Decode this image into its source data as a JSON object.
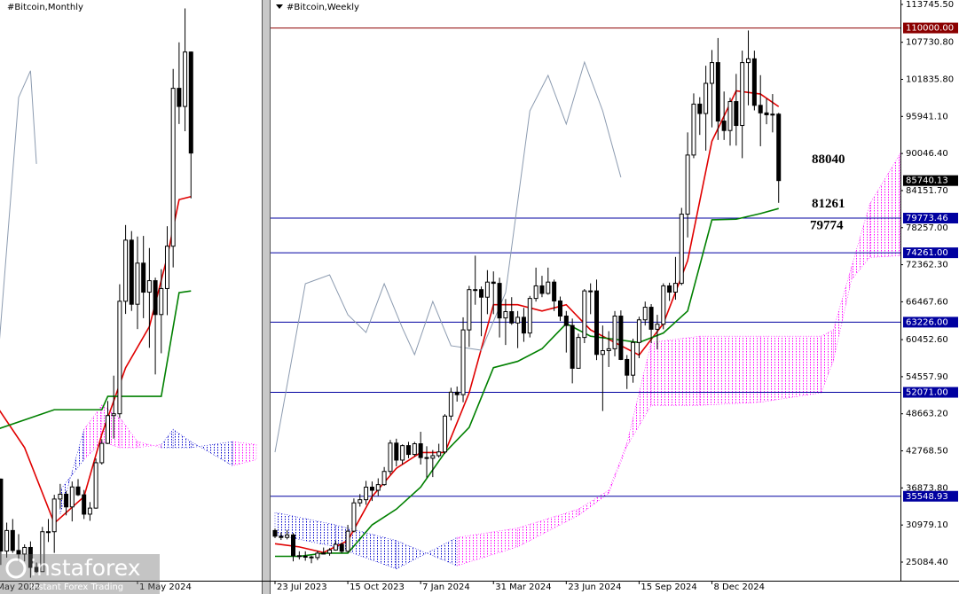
{
  "watermark": {
    "brand": "instaforex",
    "tagline": "Instant Forex Trading"
  },
  "chart_data": [
    {
      "type": "candlestick",
      "title": "#Bitcoin,Monthly",
      "xlim": [
        0.866,
        44.9
      ],
      "ylim": [
        15000,
        111000
      ],
      "xticks": [
        {
          "value": 0,
          "label": "May 2022"
        },
        {
          "value": 24,
          "label": "1 May 2024"
        }
      ],
      "up_color": "#ffffff",
      "down_color": "#000000",
      "open": [
        37700,
        31800,
        19900,
        23300,
        20000,
        19400,
        20500,
        17200,
        16500,
        23100,
        23100,
        28500,
        29300,
        27200,
        30500,
        29200,
        26000,
        27000,
        34500,
        37700,
        42300,
        42600,
        61200,
        71300,
        60700,
        67500,
        62700,
        64600,
        59000,
        63300,
        70300,
        96400,
        93400,
        102400
      ],
      "high": [
        39900,
        31900,
        24600,
        25200,
        22700,
        21000,
        21500,
        18000,
        23900,
        25200,
        29200,
        31000,
        29800,
        31400,
        31800,
        30000,
        28000,
        35200,
        38400,
        44700,
        48900,
        64000,
        73800,
        72800,
        71900,
        72000,
        70000,
        65100,
        66500,
        73600,
        99600,
        104000,
        109600,
        102500
      ],
      "low": [
        26700,
        17600,
        18800,
        19600,
        18200,
        18200,
        15500,
        16300,
        16500,
        21400,
        19600,
        26900,
        25800,
        24800,
        29000,
        25200,
        24900,
        26900,
        34200,
        37600,
        38500,
        41900,
        59100,
        59600,
        56600,
        58400,
        53500,
        49100,
        52600,
        58900,
        66800,
        90500,
        89300,
        78200
      ],
      "close": [
        31800,
        19900,
        23300,
        20000,
        19400,
        20500,
        17200,
        16500,
        23100,
        23100,
        28500,
        29300,
        27200,
        30500,
        29200,
        26000,
        27000,
        34500,
        37700,
        42300,
        42600,
        61200,
        71300,
        60700,
        67500,
        62700,
        64600,
        59000,
        63300,
        70300,
        96400,
        93400,
        102400,
        85700
      ],
      "cloud": {
        "up_color": "#ff00ff",
        "down_color": "#0000cd",
        "x": [
          11,
          15,
          18,
          21,
          24,
          28,
          30,
          33,
          40,
          44
        ],
        "span_a": [
          26000,
          40000,
          44000,
          42000,
          38000,
          37000,
          37000,
          37000,
          38000,
          37500
        ],
        "span_b": [
          30000,
          35000,
          38000,
          37000,
          37000,
          37500,
          40000,
          38000,
          34000,
          35000
        ]
      },
      "lines": [
        {
          "color": "#e00000",
          "x": [
            0,
            5,
            10,
            15,
            18,
            22,
            26,
            29,
            31,
            33
          ],
          "values": [
            44300,
            37000,
            24500,
            28900,
            39200,
            50200,
            57000,
            68500,
            78000,
            78500
          ]
        },
        {
          "color": "#008000",
          "x": [
            0,
            10,
            18,
            19,
            28,
            31,
            33
          ],
          "values": [
            39900,
            43270,
            43270,
            45470,
            45470,
            62620,
            62900
          ]
        },
        {
          "color": "#8c9bb0",
          "x": [
            0,
            4,
            6,
            7
          ],
          "values": [
            45000,
            94900,
            99300,
            83900
          ]
        }
      ]
    },
    {
      "type": "candlestick",
      "title": "#Bitcoin,Weekly",
      "xlim": [
        -0.73,
        103.07
      ],
      "ylim": [
        22124,
        114450
      ],
      "xticks": [
        {
          "value": 0,
          "label": "23 Jul 2023"
        },
        {
          "value": 12,
          "label": "15 Oct 2023"
        },
        {
          "value": 24,
          "label": "7 Jan 2024"
        },
        {
          "value": 36,
          "label": "31 Mar 2024"
        },
        {
          "value": 48,
          "label": "23 Jun 2024"
        },
        {
          "value": 60,
          "label": "15 Sep 2024"
        },
        {
          "value": 72,
          "label": "8 Dec 2024"
        }
      ],
      "yticks": [
        {
          "value": 113745.5,
          "label": "113745.50"
        },
        {
          "value": 107730.8,
          "label": "107730.80"
        },
        {
          "value": 101835.8,
          "label": "101835.80"
        },
        {
          "value": 95941.1,
          "label": "95941.10"
        },
        {
          "value": 90046.4,
          "label": "90046.40"
        },
        {
          "value": 84151.7,
          "label": "84151.70"
        },
        {
          "value": 78257,
          "label": "78257.00"
        },
        {
          "value": 72362.3,
          "label": "72362.30"
        },
        {
          "value": 66467.6,
          "label": "66467.60"
        },
        {
          "value": 60452.6,
          "label": "60452.60"
        },
        {
          "value": 54557.9,
          "label": "54557.90"
        },
        {
          "value": 48663.2,
          "label": "48663.20"
        },
        {
          "value": 42768.5,
          "label": "42768.50"
        },
        {
          "value": 36873.8,
          "label": "36873.80"
        },
        {
          "value": 30979.1,
          "label": "30979.10"
        },
        {
          "value": 25084.4,
          "label": "25084.40"
        }
      ],
      "levels": [
        {
          "value": 110000,
          "label": "110000.00",
          "color": "#8b0000"
        },
        {
          "value": 79773.46,
          "label": "79773.46",
          "color": "#0000a0"
        },
        {
          "value": 74261,
          "label": "74261.00",
          "color": "#0000a0"
        },
        {
          "value": 63226,
          "label": "63226.00",
          "color": "#0000a0"
        },
        {
          "value": 52071,
          "label": "52071.00",
          "color": "#0000a0"
        },
        {
          "value": 35548.93,
          "label": "35548.93",
          "color": "#0000a0"
        }
      ],
      "current_price": {
        "value": 85740.13,
        "label": "85740.13"
      },
      "annotations": [
        88040,
        81261,
        79774
      ],
      "up_color": "#ffffff",
      "down_color": "#000000",
      "open": [
        30100,
        29200,
        29000,
        29400,
        26100,
        26000,
        25900,
        25800,
        26500,
        26500,
        27000,
        27900,
        26800,
        30000,
        34500,
        35000,
        37000,
        36500,
        37400,
        39500,
        44000,
        41300,
        43600,
        42200,
        43900,
        41700,
        41600,
        42000,
        42600,
        48300,
        52100,
        51700,
        62000,
        68400,
        68400,
        67200,
        69600,
        69400,
        63900,
        64900,
        63100,
        64000,
        61500,
        67000,
        69000,
        67800,
        69600,
        66600,
        64200,
        62700,
        55900,
        60800,
        68200,
        68200,
        58100,
        58700,
        59000,
        64200,
        57300,
        54800,
        60000,
        63600,
        65600,
        62100,
        62900,
        69000,
        68000,
        69400,
        80400,
        89800,
        97900,
        96400,
        101200,
        104500,
        95200,
        93700,
        98300,
        94500,
        104500,
        105100,
        97700,
        96500,
        96200,
        96300
      ],
      "high": [
        30400,
        29800,
        30200,
        29700,
        26800,
        26800,
        26100,
        26900,
        27400,
        27300,
        28500,
        28200,
        31000,
        35200,
        35900,
        38000,
        37900,
        38400,
        40200,
        44500,
        44700,
        43800,
        44200,
        44200,
        45800,
        43500,
        42900,
        43900,
        48600,
        52800,
        53000,
        64000,
        69000,
        73800,
        68900,
        71500,
        71300,
        70300,
        66900,
        67200,
        65000,
        65500,
        67400,
        71900,
        70600,
        71900,
        70000,
        67300,
        65000,
        63800,
        61400,
        68500,
        69400,
        70000,
        62700,
        61800,
        65000,
        65100,
        58000,
        60600,
        64100,
        66500,
        66100,
        64400,
        69400,
        69500,
        73600,
        81400,
        93400,
        99600,
        99000,
        104000,
        106500,
        108400,
        99900,
        98900,
        102700,
        106400,
        109600,
        106400,
        102500,
        98800,
        99500,
        96500
      ],
      "low": [
        28900,
        28600,
        28700,
        25200,
        25500,
        25300,
        24900,
        25400,
        26300,
        26100,
        26900,
        26500,
        26600,
        29800,
        33900,
        34200,
        34800,
        35600,
        37200,
        39000,
        40300,
        40600,
        41600,
        41900,
        40600,
        38500,
        38600,
        41700,
        42300,
        47600,
        50600,
        50500,
        59300,
        66000,
        61000,
        64500,
        64500,
        60800,
        59600,
        62800,
        59100,
        60100,
        60800,
        66500,
        67200,
        67600,
        65000,
        63400,
        58400,
        53500,
        56800,
        59900,
        64500,
        57200,
        49100,
        56100,
        57800,
        57200,
        52600,
        53600,
        57500,
        62700,
        59900,
        58900,
        62100,
        66600,
        66800,
        69100,
        76700,
        89300,
        93000,
        90500,
        94200,
        92200,
        92200,
        91300,
        91300,
        89300,
        97700,
        96900,
        91200,
        94700,
        93400,
        82200
      ],
      "close": [
        29200,
        29000,
        29400,
        26100,
        26000,
        25900,
        25800,
        26500,
        26500,
        27000,
        27900,
        26800,
        30000,
        34500,
        35000,
        37000,
        36500,
        37400,
        39500,
        44000,
        41300,
        43600,
        42200,
        43900,
        41700,
        41600,
        42000,
        42600,
        48300,
        52100,
        51700,
        62000,
        68400,
        68400,
        67200,
        69600,
        69400,
        63900,
        64900,
        63100,
        64000,
        61500,
        67000,
        69000,
        67800,
        69600,
        66600,
        64200,
        62700,
        55900,
        60800,
        68200,
        68200,
        58100,
        58700,
        59000,
        64200,
        57300,
        54800,
        60000,
        63600,
        65600,
        62100,
        62900,
        69000,
        68000,
        69400,
        80400,
        89800,
        97900,
        96400,
        101200,
        104500,
        95200,
        93700,
        98300,
        94500,
        104500,
        105100,
        97700,
        96500,
        96200,
        96300,
        85740
      ],
      "cloud": {
        "up_color": "#ff00ff",
        "down_color": "#0000cd",
        "x": [
          0,
          10,
          20,
          30,
          40,
          50,
          55,
          58,
          62,
          70,
          80,
          90,
          92,
          95,
          98,
          103
        ],
        "span_a": [
          29500,
          27500,
          24000,
          29000,
          30500,
          33500,
          36500,
          44000,
          60000,
          61000,
          61000,
          61000,
          62000,
          72000,
          82000,
          90000
        ],
        "span_b": [
          33000,
          31000,
          28500,
          24500,
          27500,
          32500,
          36000,
          43500,
          50000,
          50000,
          50500,
          52000,
          57000,
          70000,
          73500,
          73800
        ]
      },
      "lines": [
        {
          "color": "#e00000",
          "x": [
            0,
            4,
            8,
            12,
            16,
            20,
            24,
            28,
            32,
            36,
            40,
            44,
            48,
            52,
            56,
            60,
            64,
            68,
            72,
            76,
            80,
            83
          ],
          "values": [
            28000,
            27500,
            26600,
            28500,
            35500,
            40000,
            42500,
            42500,
            52000,
            66000,
            66000,
            65000,
            66000,
            62000,
            60000,
            58000,
            63000,
            73000,
            92000,
            100000,
            99500,
            97500
          ]
        },
        {
          "color": "#008000",
          "x": [
            0,
            4,
            8,
            12,
            16,
            20,
            24,
            28,
            32,
            36,
            40,
            44,
            48,
            52,
            56,
            60,
            64,
            68,
            72,
            76,
            80,
            83
          ],
          "values": [
            26000,
            26000,
            26500,
            26500,
            31000,
            33500,
            37000,
            42500,
            46500,
            56000,
            57000,
            59000,
            63000,
            61000,
            60500,
            60000,
            61500,
            65000,
            79500,
            79600,
            80500,
            81300
          ]
        },
        {
          "color": "#8c9bb0",
          "x": [
            0,
            5,
            9,
            12,
            15,
            18,
            21,
            23,
            26,
            29,
            34,
            38,
            42,
            45,
            48,
            51,
            54,
            57
          ],
          "values": [
            42560,
            69340,
            70750,
            64410,
            61590,
            69340,
            62290,
            58070,
            66520,
            59480,
            58770,
            67930,
            96830,
            102470,
            94720,
            104580,
            96830,
            86260
          ]
        }
      ]
    }
  ]
}
